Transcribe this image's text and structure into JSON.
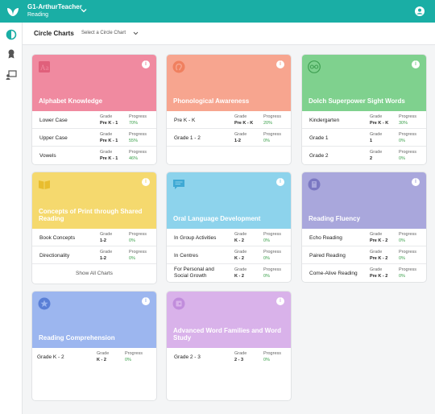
{
  "header": {
    "account_name": "G1-ArthurTeacher",
    "account_sub": "Reading",
    "icons": [
      "leaf-logo-icon",
      "chevron-down-icon",
      "user-avatar-icon"
    ]
  },
  "sidebar": {
    "icons": [
      "half-circle-icon",
      "award-icon",
      "teacher-board-icon"
    ]
  },
  "subheader": {
    "title": "Circle Charts",
    "select_label": "Select a Circle Chart"
  },
  "labels": {
    "grade": "Grade",
    "progress": "Progress"
  },
  "cards": [
    {
      "title": "Alphabet Knowledge",
      "color": "#f08aa0",
      "icon": "font-book-icon",
      "rows": [
        {
          "name": "Lower Case",
          "grade": "Pre K - 1",
          "progress": "70%"
        },
        {
          "name": "Upper Case",
          "grade": "Pre K - 1",
          "progress": "55%"
        },
        {
          "name": "Vowels",
          "grade": "Pre K - 1",
          "progress": "46%"
        }
      ]
    },
    {
      "title": "Phonological Awareness",
      "color": "#f7a58f",
      "icon": "ear-icon",
      "rows": [
        {
          "name": "Pre K - K",
          "grade": "Pre K - K",
          "progress": "20%"
        },
        {
          "name": "Grade 1 - 2",
          "grade": "1-2",
          "progress": "0%"
        }
      ]
    },
    {
      "title": "Dolch Superpower Sight Words",
      "color": "#7fd18e",
      "icon": "glasses-icon",
      "rows": [
        {
          "name": "Kindergarten",
          "grade": "Pre K - K",
          "progress": "30%"
        },
        {
          "name": "Grade 1",
          "grade": "1",
          "progress": "0%"
        },
        {
          "name": "Grade 2",
          "grade": "2",
          "progress": "0%"
        }
      ]
    },
    {
      "title": "Concepts of Print through Shared Reading",
      "color": "#f5d96e",
      "icon": "open-book-icon",
      "rows": [
        {
          "name": "Book Concepts",
          "grade": "1-2",
          "progress": "0%"
        },
        {
          "name": "Directionality",
          "grade": "1-2",
          "progress": "0%"
        }
      ],
      "show_all": "Show All Charts"
    },
    {
      "title": "Oral Language Development",
      "color": "#8dd3ec",
      "icon": "speech-bubble-icon",
      "rows": [
        {
          "name": "In Group Activities",
          "grade": "K - 2",
          "progress": "0%"
        },
        {
          "name": "In Centres",
          "grade": "K - 2",
          "progress": "0%"
        },
        {
          "name": "For Personal and Social Growth",
          "grade": "K - 2",
          "progress": "0%"
        }
      ]
    },
    {
      "title": "Reading Fluency",
      "color": "#a9a7dc",
      "icon": "book-badge-icon",
      "rows": [
        {
          "name": "Echo Reading",
          "grade": "Pre K - 2",
          "progress": "0%"
        },
        {
          "name": "Paired Reading",
          "grade": "Pre K - 2",
          "progress": "0%"
        },
        {
          "name": "Come-Alive Reading",
          "grade": "Pre K - 2",
          "progress": "0%"
        }
      ]
    },
    {
      "title": "Reading Comprehension",
      "color": "#9cb6ef",
      "icon": "star-badge-icon",
      "rows": [
        {
          "name": "Grade K - 2",
          "grade": "K - 2",
          "progress": "0%"
        }
      ]
    },
    {
      "title": "Advanced Word Families and Word Study",
      "color": "#d9b2ea",
      "icon": "puzzle-book-icon",
      "rows": [
        {
          "name": "Grade 2 - 3",
          "grade": "2 - 3",
          "progress": "0%"
        }
      ]
    }
  ]
}
